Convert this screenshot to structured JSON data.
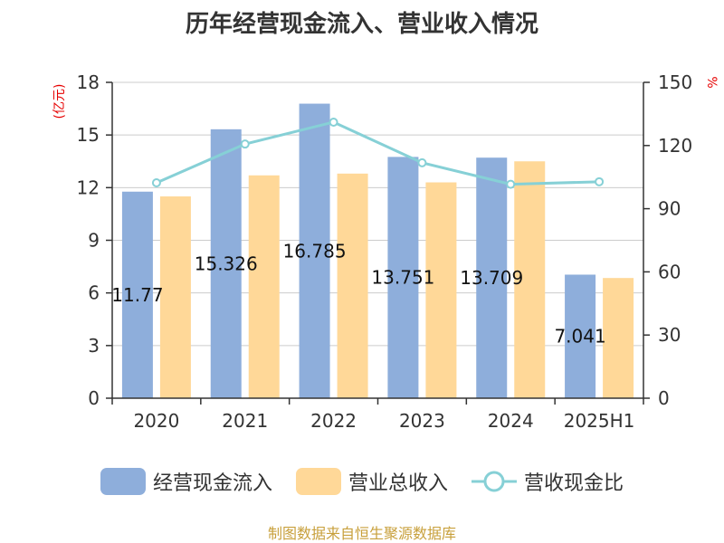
{
  "title": "历年经营现金流入、营业收入情况",
  "left_unit": "(亿元)",
  "right_unit": "%",
  "source": "制图数据来自恒生聚源数据库",
  "colors": {
    "cash_inflow": "#8eaedb",
    "revenue": "#ffd898",
    "ratio": "#86d0d6"
  },
  "chart_data": {
    "type": "bar",
    "categories": [
      "2020",
      "2021",
      "2022",
      "2023",
      "2024",
      "2025H1"
    ],
    "series": [
      {
        "name": "经营现金流入",
        "axis": "left",
        "type": "bar",
        "values": [
          11.771,
          15.326,
          16.785,
          13.751,
          13.709,
          7.041
        ],
        "labels": [
          "11.77",
          "15.326",
          "16.785",
          "13.751",
          "13.709",
          "7.041"
        ]
      },
      {
        "name": "营业总收入",
        "axis": "left",
        "type": "bar",
        "values": [
          11.5,
          12.7,
          12.8,
          12.3,
          13.5,
          6.85
        ]
      },
      {
        "name": "营收现金比",
        "axis": "right",
        "type": "line",
        "values": [
          102.3,
          120.7,
          131.1,
          111.8,
          101.6,
          102.8
        ]
      }
    ],
    "left_axis": {
      "ylim": [
        0,
        18
      ],
      "ticks": [
        0,
        3,
        6,
        9,
        12,
        15,
        18
      ]
    },
    "right_axis": {
      "ylim": [
        0,
        150
      ],
      "ticks": [
        0,
        30,
        60,
        90,
        120,
        150
      ]
    },
    "grid": true,
    "legend_position": "bottom"
  }
}
